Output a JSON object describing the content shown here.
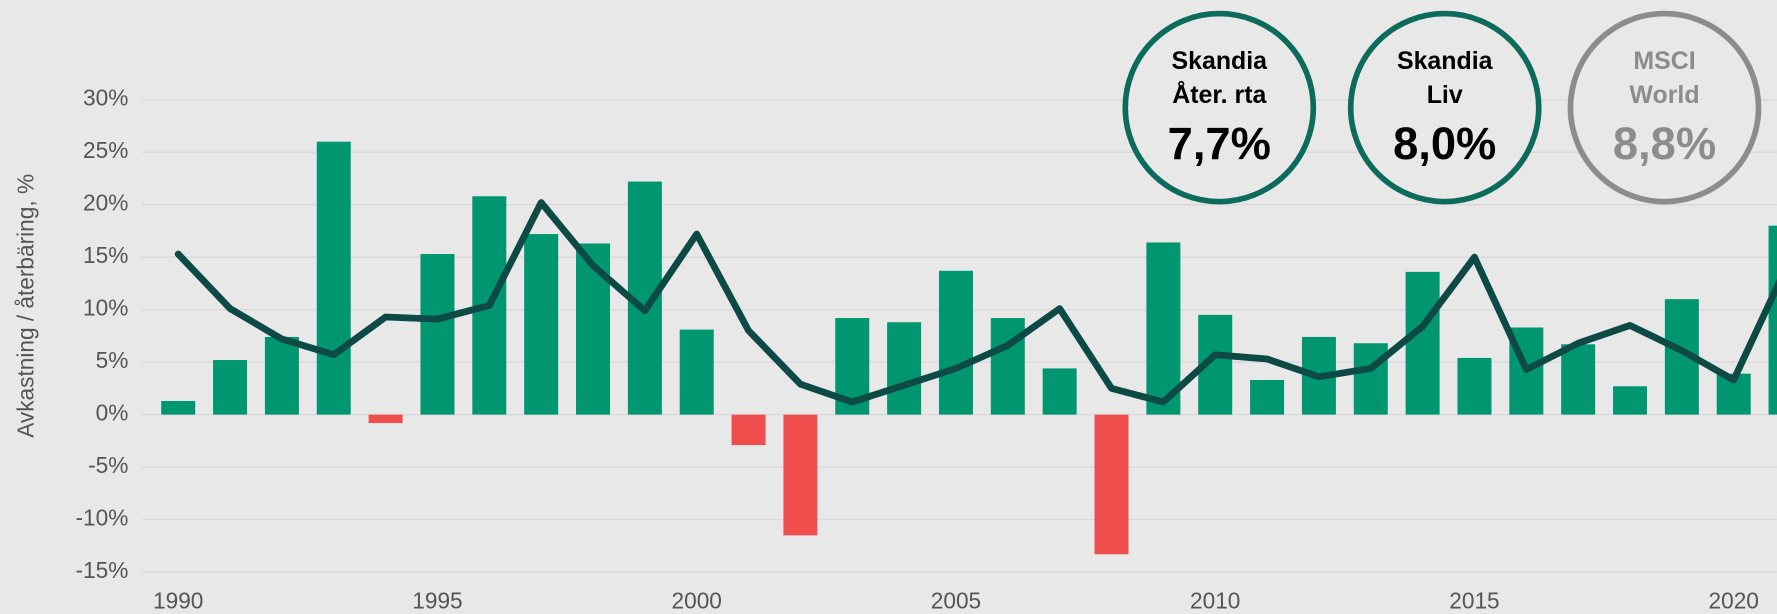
{
  "chart_data": {
    "type": "bar",
    "ylabel": "Avkastning / återbäring, %",
    "categories": [
      "1990",
      null,
      null,
      null,
      null,
      "1995",
      null,
      null,
      null,
      null,
      "2000",
      null,
      null,
      null,
      null,
      "2005",
      null,
      null,
      null,
      null,
      "2010",
      null,
      null,
      null,
      null,
      "2015",
      null,
      null,
      null,
      null,
      "2020",
      null
    ],
    "series": [
      {
        "type": "bar",
        "color": "#009670",
        "negative_color": "#f04e4c",
        "values": [
          1.3,
          5.2,
          7.4,
          26,
          -0.8,
          15.3,
          20.8,
          17.2,
          16.3,
          22.2,
          8.1,
          -2.9,
          -11.5,
          9.2,
          8.8,
          13.7,
          9.2,
          4.4,
          -13.3,
          16.4,
          9.5,
          3.3,
          7.4,
          6.8,
          13.6,
          5.4,
          8.3,
          6.7,
          2.7,
          11.0,
          3.9,
          18.0
        ]
      },
      {
        "type": "line",
        "color": "#0d4a45",
        "values": [
          15.3,
          10.1,
          7.2,
          5.7,
          9.3,
          9.1,
          10.4,
          20.2,
          14.2,
          9.9,
          17.2,
          8.0,
          2.9,
          1.2,
          2.8,
          4.4,
          6.6,
          10.1,
          2.5,
          1.2,
          5.7,
          5.3,
          3.6,
          4.4,
          8.4,
          15.0,
          4.3,
          6.8,
          8.5,
          6.1,
          3.3,
          13.9
        ]
      }
    ],
    "ylim": [
      -15,
      30
    ],
    "yticks": [
      {
        "value": -15,
        "label": "-15%"
      },
      {
        "value": -10,
        "label": "-10%"
      },
      {
        "value": -5,
        "label": "-5%"
      },
      {
        "value": 0,
        "label": "0%"
      },
      {
        "value": 5,
        "label": "5%"
      },
      {
        "value": 10,
        "label": "10%"
      },
      {
        "value": 15,
        "label": "15%"
      },
      {
        "value": 20,
        "label": "20%"
      },
      {
        "value": 25,
        "label": "25%"
      },
      {
        "value": 30,
        "label": "30%"
      }
    ],
    "grid": true,
    "annotations": [
      {
        "lines": [
          "Skandia",
          "Åter. rta"
        ],
        "value": "7,7%",
        "color": "#0d6b5c",
        "text_color": "#000000"
      },
      {
        "lines": [
          "Skandia",
          "Liv"
        ],
        "value": "8,0%",
        "color": "#0d6b5c",
        "text_color": "#000000"
      },
      {
        "lines": [
          "MSCI",
          "World"
        ],
        "value": "8,8%",
        "color": "#8c8c8c",
        "text_color": "#8c8c8c"
      }
    ]
  }
}
